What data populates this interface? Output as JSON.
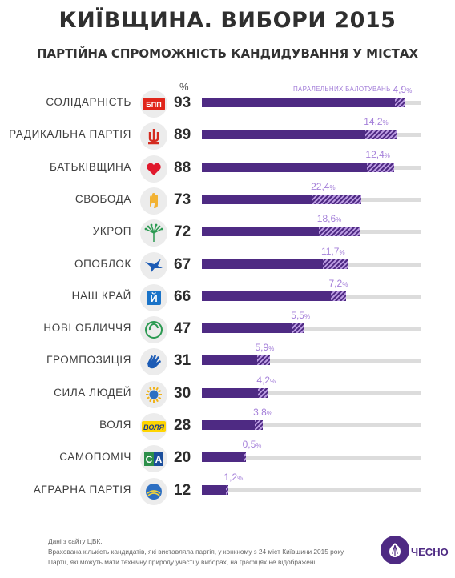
{
  "header": {
    "title": "КИЇВЩИНА. ВИБОРИ 2015",
    "subtitle": "ПАРТІЙНА СПРОМОЖНІСТЬ КАНДИДУВАННЯ У МІСТАХ"
  },
  "chart_data": {
    "type": "bar",
    "orientation": "horizontal",
    "unit_header": "%",
    "xlim": [
      0,
      100
    ],
    "parallel_caption": "ПАРАЛЕЛЬНИХ БАЛОТУВАНЬ",
    "categories": [
      "СОЛІДАРНІСТЬ",
      "РАДИКАЛЬНА ПАРТІЯ",
      "БАТЬКІВЩИНА",
      "СВОБОДА",
      "УКРОП",
      "ОПОБЛОК",
      "НАШ КРАЙ",
      "НОВІ ОБЛИЧЧЯ",
      "ГРОМПОЗИЦІЯ",
      "СИЛА ЛЮДЕЙ",
      "ВОЛЯ",
      "САМОПОМІЧ",
      "АГРАРНА ПАРТІЯ"
    ],
    "series": [
      {
        "values": [
          93,
          89,
          88,
          73,
          72,
          67,
          66,
          47,
          31,
          30,
          28,
          20,
          12
        ]
      },
      {
        "values": [
          4.9,
          14.2,
          12.4,
          22.4,
          18.6,
          11.7,
          7.2,
          5.5,
          5.9,
          4.2,
          3.8,
          0.5,
          1.2
        ]
      }
    ],
    "value_labels": [
      "93",
      "89",
      "88",
      "73",
      "72",
      "67",
      "66",
      "47",
      "31",
      "30",
      "28",
      "20",
      "12"
    ],
    "parallel_labels": [
      "4,9",
      "14,2",
      "12,4",
      "22,4",
      "18,6",
      "11,7",
      "7,2",
      "5,5",
      "5,9",
      "4,2",
      "3,8",
      "0,5",
      "1,2"
    ],
    "parallel_suffix": "%",
    "colors": {
      "bar": "#4e2a83",
      "hatch_light": "#b99ae0",
      "track": "#dcdcdc",
      "label": "#a47fd9"
    },
    "logo_icons": [
      "bpp-logo-icon",
      "pitchfork-icon",
      "heart-icon",
      "three-fingers-icon",
      "dill-icon",
      "bird-icon",
      "letter-i-icon",
      "circle-swirl-icon",
      "hand-icon",
      "sun-icon",
      "volya-logo-icon",
      "sa-logo-icon",
      "agrarian-icon"
    ],
    "logo_texts": {
      "bpp": "БПП",
      "volya": "ВОЛЯ",
      "nash_krai": "Й",
      "sa1": "С",
      "sa2": "А"
    }
  },
  "footer": {
    "notes": [
      "Дані з сайту ЦВК.",
      "Врахована кількість кандидатів, які виставляла партія, у конкному з 24 міст Київщини 2015 року.",
      "Партії, які можуть мати технічну природу участі у виборах, на графіцях не відображені."
    ],
    "brand": "ЧЕСНО"
  }
}
